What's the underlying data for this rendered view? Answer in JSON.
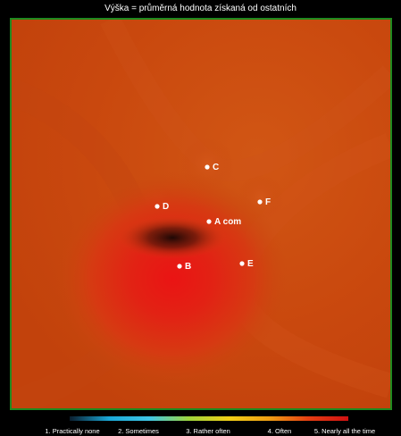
{
  "title": "Výška = průměrná hodnota získaná od ostatních",
  "points": [
    {
      "id": "c",
      "label": "C"
    },
    {
      "id": "d",
      "label": "D"
    },
    {
      "id": "f",
      "label": "F"
    },
    {
      "id": "a",
      "label": "A com"
    },
    {
      "id": "b",
      "label": "B"
    },
    {
      "id": "e",
      "label": "E"
    }
  ],
  "scale": {
    "gradient_colors": [
      "#0b1e2e",
      "#1aa9d8",
      "#3fc7e6",
      "#9fd63c",
      "#f2d016",
      "#f0a014",
      "#e63e12",
      "#d11212"
    ],
    "labels": [
      "1. Practically none",
      "2. Sometimes",
      "3. Rather often",
      "4. Often",
      "5. Nearly all the time"
    ]
  },
  "colors": {
    "field_base": "#c9480e",
    "field_light": "#d65a14",
    "hotspot": "#e41414",
    "shadow": "#1c0a04",
    "frame": "#1f8a1f"
  }
}
